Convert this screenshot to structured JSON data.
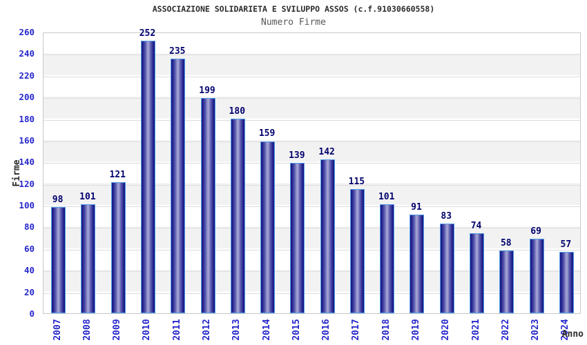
{
  "chart_data": {
    "type": "bar",
    "title": "ASSOCIAZIONE SOLIDARIETA E SVILUPPO ASSOS (c.f.91030660558)",
    "subtitle": "Numero Firme",
    "xlabel": "Anno",
    "ylabel": "Firme",
    "categories": [
      "2007",
      "2008",
      "2009",
      "2010",
      "2011",
      "2012",
      "2013",
      "2014",
      "2015",
      "2016",
      "2017",
      "2018",
      "2019",
      "2020",
      "2021",
      "2022",
      "2023",
      "2024"
    ],
    "values": [
      98,
      101,
      121,
      252,
      235,
      199,
      180,
      159,
      139,
      142,
      115,
      101,
      91,
      83,
      74,
      58,
      69,
      57
    ],
    "ylim": [
      0,
      260
    ],
    "ytick_step": 20,
    "grid": true,
    "legend_position": "none",
    "colors": {
      "bar_edge": "#17177f",
      "bar_center": "#a2a2d4",
      "bar_border": "#539fe8",
      "axis_tick_label": "#2626cc",
      "bar_value_label": "#00006e",
      "title": "#2b2b2b",
      "subtitle": "#565656",
      "axis_title": "#2b2b2b",
      "band_fill": "#f2f2f2",
      "grid_line": "#dcdcdc",
      "plot_border": "#c8c8c8",
      "background": "#ffffff"
    }
  }
}
